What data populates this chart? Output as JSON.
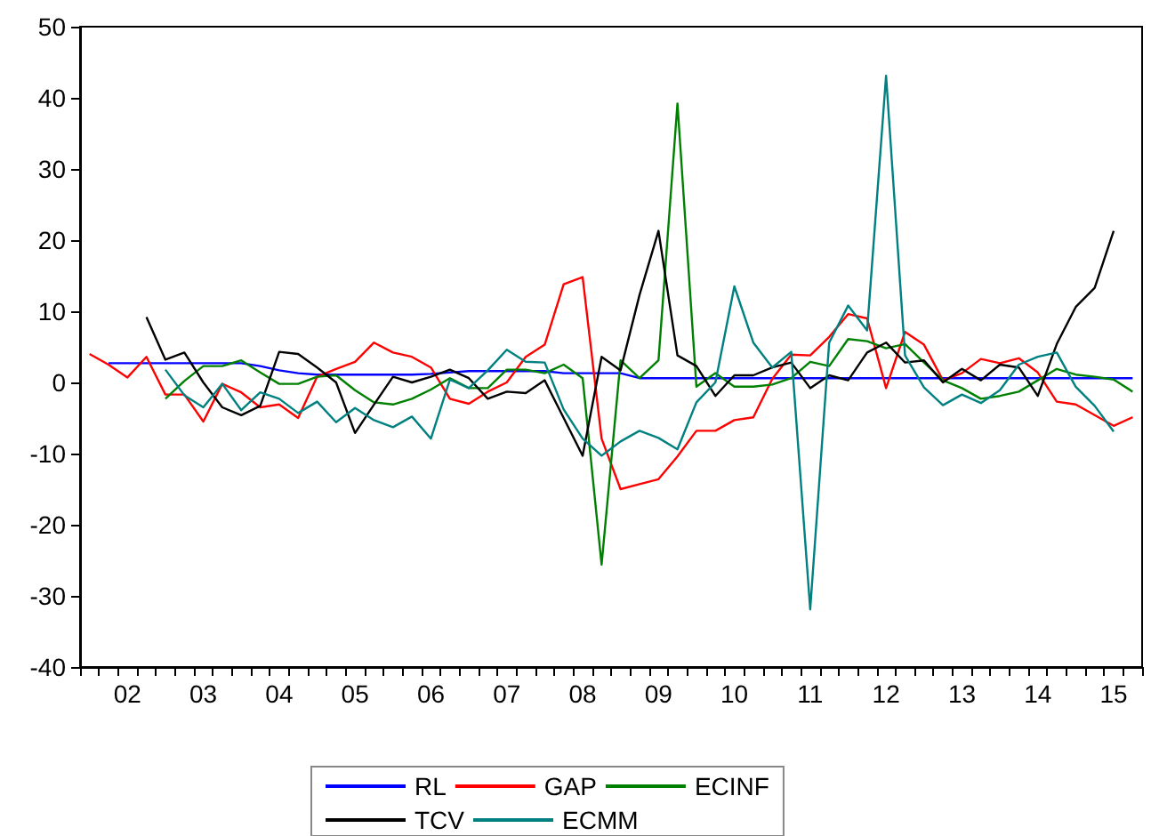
{
  "chart_data": {
    "type": "line",
    "categories": [
      null,
      null,
      "02",
      null,
      null,
      null,
      "03",
      null,
      null,
      null,
      "04",
      null,
      null,
      null,
      "05",
      null,
      null,
      null,
      "06",
      null,
      null,
      null,
      "07",
      null,
      null,
      null,
      "08",
      null,
      null,
      null,
      "09",
      null,
      null,
      null,
      "10",
      null,
      null,
      null,
      "11",
      null,
      null,
      null,
      "12",
      null,
      null,
      null,
      "13",
      null,
      null,
      null,
      "14",
      null,
      null,
      null,
      "15",
      null
    ],
    "series": [
      {
        "name": "RL",
        "color": "#0000ff",
        "values": [
          null,
          2.7,
          2.7,
          2.7,
          2.7,
          2.7,
          2.7,
          2.7,
          2.7,
          2.3,
          1.7,
          1.3,
          1.1,
          1.1,
          1.1,
          1.1,
          1.1,
          1.1,
          1.2,
          1.4,
          1.6,
          1.6,
          1.6,
          1.6,
          1.6,
          1.3,
          1.3,
          1.3,
          1.3,
          0.6,
          0.6,
          0.6,
          0.6,
          0.6,
          0.6,
          0.6,
          0.6,
          0.6,
          0.6,
          0.6,
          0.6,
          0.6,
          0.6,
          0.6,
          0.6,
          0.6,
          0.6,
          0.6,
          0.6,
          0.6,
          0.6,
          0.6,
          0.6,
          0.6,
          0.6,
          0.6
        ]
      },
      {
        "name": "GAP",
        "color": "#ff0000",
        "values": [
          4,
          2.5,
          0.7,
          3.6,
          -1.7,
          -1.7,
          -5.5,
          -0.2,
          -1.4,
          -3.5,
          -3.1,
          -5,
          0.8,
          1.9,
          2.9,
          5.6,
          4.2,
          3.6,
          2.1,
          -2.3,
          -3,
          -1.3,
          0,
          3.6,
          5.3,
          13.8,
          14.8,
          -7.9,
          -15,
          -14.3,
          -13.6,
          -10.4,
          -6.8,
          -6.8,
          -5.3,
          -4.9,
          0.5,
          3.9,
          3.8,
          6.4,
          9.6,
          9,
          -0.8,
          7.1,
          5.3,
          0.3,
          1.3,
          3.3,
          2.7,
          3.4,
          1.4,
          -2.7,
          -3.1,
          -4.6,
          -6.1,
          -4.9
        ]
      },
      {
        "name": "ECINF",
        "color": "#008000",
        "values": [
          null,
          null,
          null,
          null,
          -2.3,
          0.2,
          2.3,
          2.3,
          3.1,
          1.4,
          -0.2,
          -0.2,
          0.8,
          1,
          -1.1,
          -2.8,
          -3.1,
          -2.3,
          -1,
          0.6,
          -0.8,
          -0.8,
          1.8,
          1.8,
          1.3,
          2.5,
          0.6,
          -25.6,
          3.1,
          0.6,
          3.1,
          39.2,
          -0.6,
          1.3,
          -0.6,
          -0.6,
          -0.3,
          0.6,
          2.9,
          2.3,
          6.1,
          5.8,
          4.8,
          5.4,
          2.8,
          0.3,
          -0.8,
          -2.3,
          -1.9,
          -1.3,
          0.3,
          1.9,
          1.1,
          0.8,
          0.4,
          -1.3
        ]
      },
      {
        "name": "TCV",
        "color": "#000000",
        "values": [
          null,
          null,
          null,
          9.2,
          3.2,
          4.2,
          0,
          -3.5,
          -4.6,
          -3.3,
          4.3,
          4,
          2.1,
          0,
          -7.1,
          -3.1,
          0.8,
          0,
          0.8,
          1.8,
          0.6,
          -2.3,
          -1.3,
          -1.5,
          0.3,
          -5,
          -10.3,
          3.6,
          1.7,
          12.3,
          21.3,
          3.8,
          2.3,
          -1.9,
          1,
          1,
          2.1,
          2.8,
          -0.8,
          1,
          0.3,
          4.2,
          5.6,
          2.8,
          3.1,
          0,
          1.9,
          0.3,
          2.5,
          2.1,
          -1.9,
          5.4,
          10.6,
          13.3,
          21.3,
          null
        ]
      },
      {
        "name": "ECMM",
        "color": "#008080",
        "values": [
          null,
          null,
          null,
          null,
          1.8,
          -1.8,
          -3.5,
          -0.2,
          -3.9,
          -1.4,
          -2.3,
          -4.3,
          -2.7,
          -5.6,
          -3.6,
          -5.3,
          -6.3,
          -4.8,
          -7.9,
          0.4,
          -0.8,
          1.7,
          4.6,
          2.9,
          2.8,
          -3.8,
          -7.9,
          -10.3,
          -8.3,
          -6.8,
          -7.8,
          -9.4,
          -2.8,
          0,
          13.5,
          5.6,
          2.1,
          4.3,
          -31.9,
          5.6,
          10.8,
          7.3,
          43.1,
          3.8,
          -0.7,
          -3.2,
          -1.7,
          -2.9,
          -1.1,
          2.5,
          3.6,
          4.2,
          -0.6,
          -3.3,
          -6.9,
          null
        ]
      }
    ],
    "ylim": [
      -40,
      50
    ],
    "yticks": [
      -40,
      -30,
      -20,
      -10,
      0,
      10,
      20,
      30,
      40,
      50
    ],
    "grid": false,
    "legend": "bottom",
    "marker": "none",
    "line_style": "solid"
  }
}
